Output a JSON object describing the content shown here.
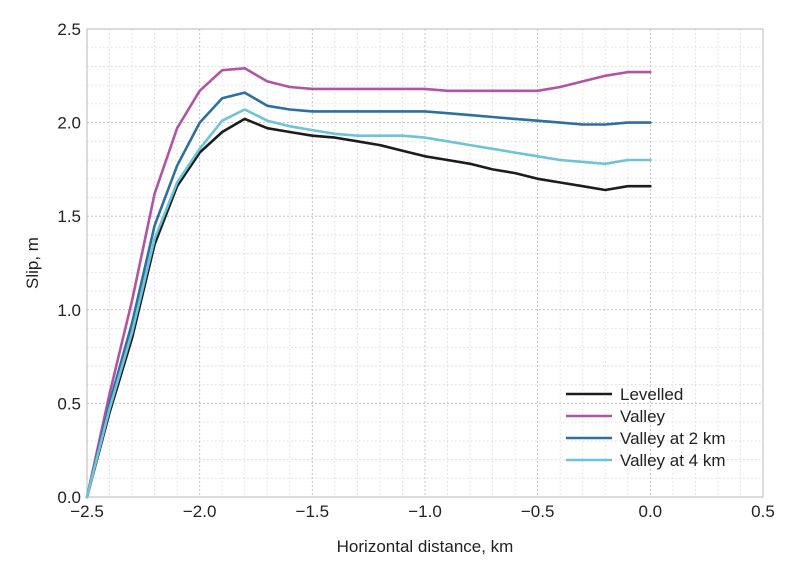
{
  "chart_data": {
    "type": "line",
    "title": "",
    "xlabel": "Horizontal distance, km",
    "ylabel": "Slip, m",
    "xlim": [
      -2.5,
      0.5
    ],
    "ylim": [
      0.0,
      2.5
    ],
    "xticks": [
      -2.5,
      -2.0,
      -1.5,
      -1.0,
      -0.5,
      0.0,
      0.5
    ],
    "xtick_labels": [
      "−2.5",
      "−2.0",
      "−1.5",
      "−1.0",
      "−0.5",
      "0.0",
      "0.5"
    ],
    "yticks": [
      0.0,
      0.5,
      1.0,
      1.5,
      2.0,
      2.5
    ],
    "ytick_labels": [
      "0.0",
      "0.5",
      "1.0",
      "1.5",
      "2.0",
      "2.5"
    ],
    "minor_grid_step_x": 0.1,
    "minor_grid_step_y": 0.1,
    "grid": true,
    "legend_position": "bottom-right",
    "series": [
      {
        "name": "Levelled",
        "color": "#1c1c1c",
        "x": [
          -2.5,
          -2.4,
          -2.3,
          -2.2,
          -2.1,
          -2.0,
          -1.9,
          -1.8,
          -1.7,
          -1.6,
          -1.5,
          -1.4,
          -1.3,
          -1.2,
          -1.1,
          -1.0,
          -0.9,
          -0.8,
          -0.7,
          -0.6,
          -0.5,
          -0.4,
          -0.3,
          -0.2,
          -0.1,
          0.0
        ],
        "y": [
          0.0,
          0.45,
          0.85,
          1.35,
          1.66,
          1.84,
          1.95,
          2.02,
          1.97,
          1.95,
          1.93,
          1.92,
          1.9,
          1.88,
          1.85,
          1.82,
          1.8,
          1.78,
          1.75,
          1.73,
          1.7,
          1.68,
          1.66,
          1.64,
          1.66,
          1.66
        ]
      },
      {
        "name": "Valley",
        "color": "#b055a6",
        "x": [
          -2.5,
          -2.4,
          -2.3,
          -2.2,
          -2.1,
          -2.0,
          -1.9,
          -1.8,
          -1.7,
          -1.6,
          -1.5,
          -1.4,
          -1.3,
          -1.2,
          -1.1,
          -1.0,
          -0.9,
          -0.8,
          -0.7,
          -0.6,
          -0.5,
          -0.4,
          -0.3,
          -0.2,
          -0.1,
          0.0
        ],
        "y": [
          0.0,
          0.55,
          1.05,
          1.62,
          1.97,
          2.17,
          2.28,
          2.29,
          2.22,
          2.19,
          2.18,
          2.18,
          2.18,
          2.18,
          2.18,
          2.18,
          2.17,
          2.17,
          2.17,
          2.17,
          2.17,
          2.19,
          2.22,
          2.25,
          2.27,
          2.27
        ]
      },
      {
        "name": "Valley at 2 km",
        "color": "#2e6fa0",
        "x": [
          -2.5,
          -2.4,
          -2.3,
          -2.2,
          -2.1,
          -2.0,
          -1.9,
          -1.8,
          -1.7,
          -1.6,
          -1.5,
          -1.4,
          -1.3,
          -1.2,
          -1.1,
          -1.0,
          -0.9,
          -0.8,
          -0.7,
          -0.6,
          -0.5,
          -0.4,
          -0.3,
          -0.2,
          -0.1,
          0.0
        ],
        "y": [
          0.0,
          0.5,
          0.93,
          1.45,
          1.77,
          2.0,
          2.13,
          2.16,
          2.09,
          2.07,
          2.06,
          2.06,
          2.06,
          2.06,
          2.06,
          2.06,
          2.05,
          2.04,
          2.03,
          2.02,
          2.01,
          2.0,
          1.99,
          1.99,
          2.0,
          2.0
        ]
      },
      {
        "name": "Valley at 4 km",
        "color": "#6ec3d6",
        "x": [
          -2.5,
          -2.4,
          -2.3,
          -2.2,
          -2.1,
          -2.0,
          -1.9,
          -1.8,
          -1.7,
          -1.6,
          -1.5,
          -1.4,
          -1.3,
          -1.2,
          -1.1,
          -1.0,
          -0.9,
          -0.8,
          -0.7,
          -0.6,
          -0.5,
          -0.4,
          -0.3,
          -0.2,
          -0.1,
          0.0
        ],
        "y": [
          0.0,
          0.47,
          0.88,
          1.38,
          1.68,
          1.86,
          2.01,
          2.07,
          2.01,
          1.98,
          1.96,
          1.94,
          1.93,
          1.93,
          1.93,
          1.92,
          1.9,
          1.88,
          1.86,
          1.84,
          1.82,
          1.8,
          1.79,
          1.78,
          1.8,
          1.8
        ]
      }
    ]
  }
}
